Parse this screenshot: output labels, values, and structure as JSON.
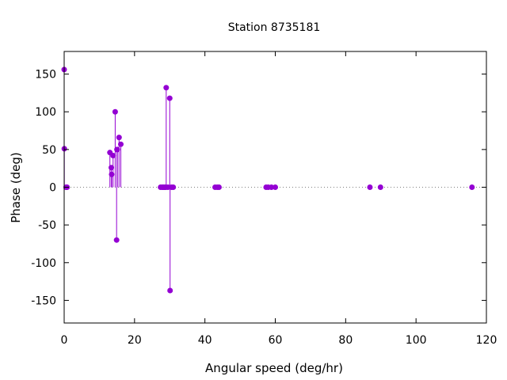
{
  "chart_data": {
    "type": "scatter",
    "style": "impulses-with-points",
    "title": "Station 8735181",
    "xlabel": "Angular speed (deg/hr)",
    "ylabel": "Phase (deg)",
    "xlim": [
      0,
      120
    ],
    "ylim": [
      -180,
      180
    ],
    "xticks": [
      0,
      20,
      40,
      60,
      80,
      100,
      120
    ],
    "yticks": [
      -150,
      -100,
      -50,
      0,
      50,
      100,
      150
    ],
    "grid": false,
    "zero_line": "dotted",
    "color": "#9400d3",
    "series": [
      {
        "x": [
          0.0,
          0.04,
          0.54,
          0.82,
          13.0,
          13.4,
          13.5,
          13.9,
          14.5,
          14.9,
          15.0,
          15.1,
          15.6,
          16.1,
          27.4,
          27.9,
          28.0,
          28.4,
          28.5,
          28.6,
          28.9,
          29.0,
          29.5,
          30.0,
          30.1,
          30.5,
          31.0,
          42.9,
          43.5,
          44.0,
          57.4,
          58.0,
          58.9,
          60.0,
          86.9,
          89.9,
          115.9
        ],
        "y": [
          156,
          51,
          0,
          0,
          46,
          26,
          17,
          42,
          100,
          -70,
          50,
          50,
          66,
          57,
          0,
          0,
          0,
          0,
          0,
          0,
          0,
          132,
          0,
          118,
          -137,
          0,
          0,
          0,
          0,
          0,
          0,
          0,
          0,
          0,
          0,
          0,
          0
        ]
      }
    ]
  }
}
